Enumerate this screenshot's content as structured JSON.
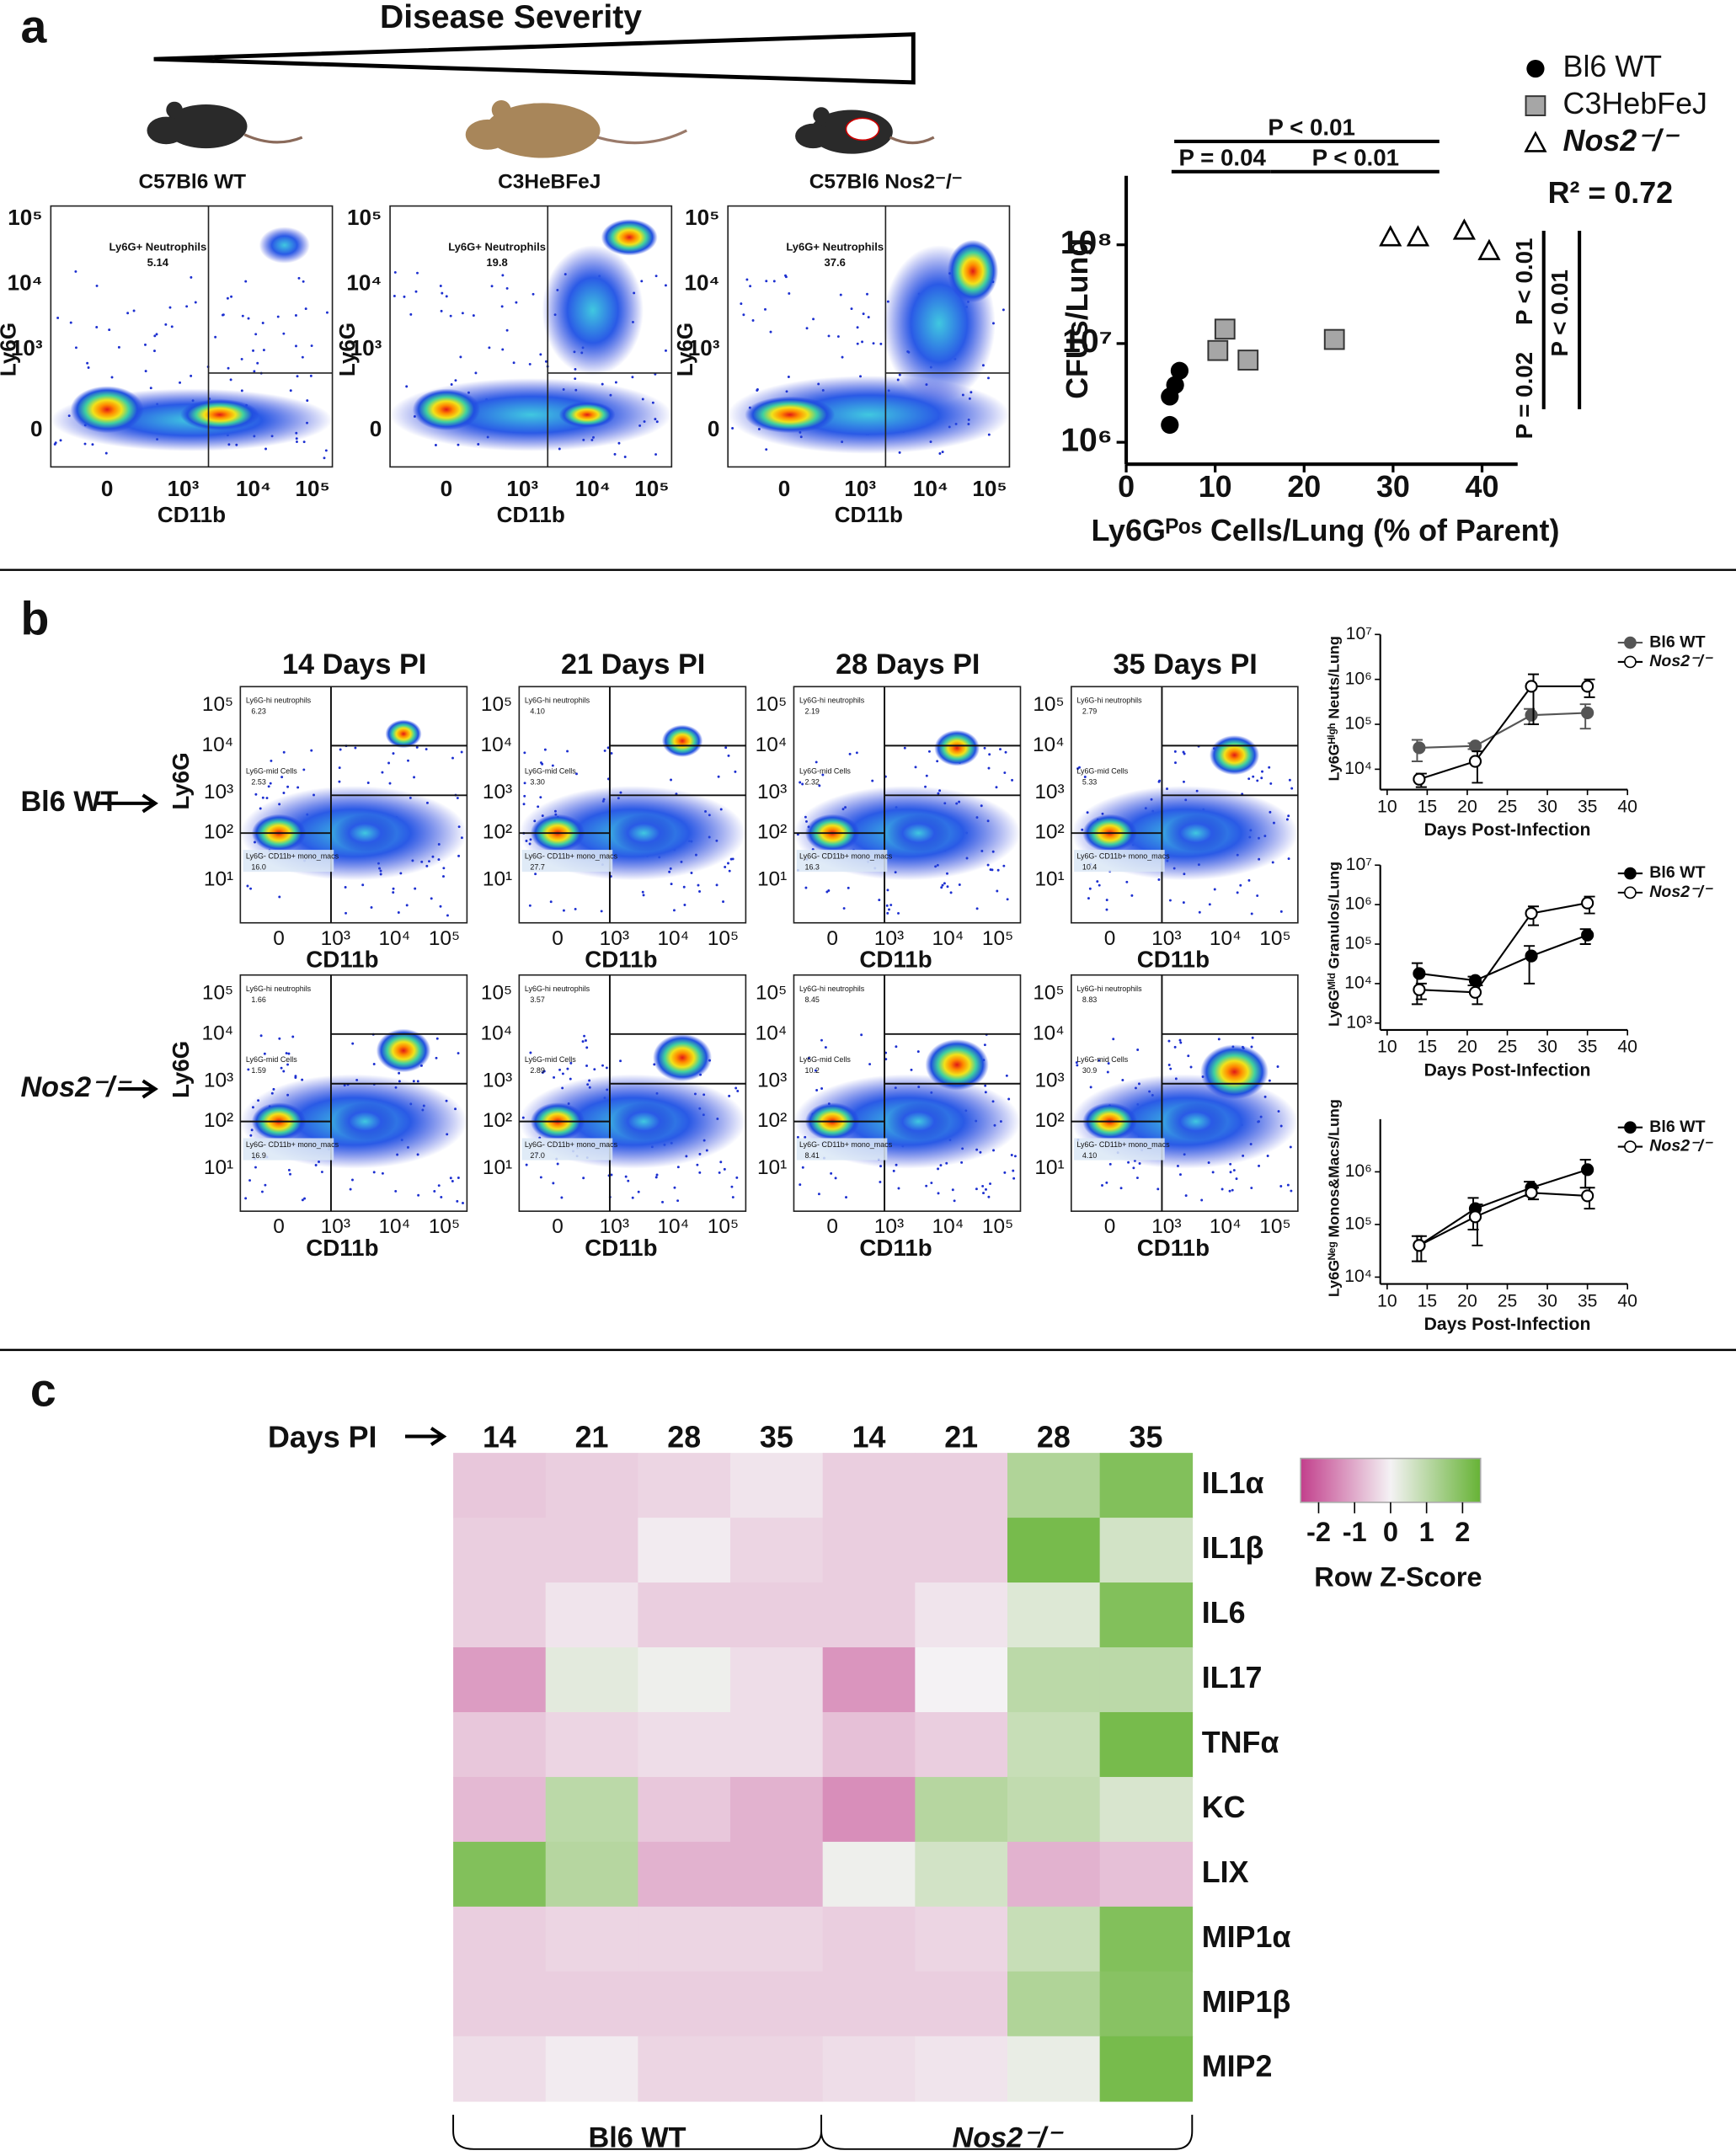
{
  "panel_a": {
    "label": "a",
    "severity_title": "Disease Severity",
    "strains": [
      "C57Bl6 WT",
      "C3HeBFeJ",
      "C57Bl6 Nos2⁻/⁻"
    ],
    "flow_plots": [
      {
        "gate": "Ly6G+ Neutrophils",
        "percent": "5.14"
      },
      {
        "gate": "Ly6G+ Neutrophils",
        "percent": "19.8"
      },
      {
        "gate": "Ly6G+ Neutrophils",
        "percent": "37.6"
      }
    ],
    "flow_x_label": "CD11b",
    "flow_y_label": "Ly6G",
    "flow_xticks": [
      "0",
      "10³",
      "10⁴",
      "10⁵"
    ],
    "flow_yticks": [
      "10⁵",
      "10⁴",
      "10³",
      "0"
    ]
  },
  "panel_b": {
    "label": "b",
    "day_titles": [
      "14 Days PI",
      "21 Days PI",
      "28 Days PI",
      "35 Days PI"
    ],
    "row_labels": [
      "Bl6 WT",
      "Nos2⁻/⁻"
    ],
    "gate_names": [
      "Ly6G-hi neutrophils",
      "Ly6G-mid Cells",
      "Ly6G- CD11b+ mono_macs"
    ],
    "percents": [
      [
        [
          "6.23",
          "2.53",
          "16.0"
        ],
        [
          "4.10",
          "3.30",
          "27.7"
        ],
        [
          "2.19",
          "2.32",
          "16.3"
        ],
        [
          "2.79",
          "5.33",
          "10.4"
        ]
      ],
      [
        [
          "1.66",
          "1.59",
          "16.9"
        ],
        [
          "3.57",
          "2.89",
          "27.0"
        ],
        [
          "8.45",
          "10.2",
          "8.41"
        ],
        [
          "8.83",
          "30.9",
          "4.10"
        ]
      ]
    ],
    "x_label": "CD11b",
    "y_label": "Ly6G",
    "xticks": [
      "0",
      "10³",
      "10⁴",
      "10⁵"
    ],
    "yticks": [
      "10⁵",
      "10⁴",
      "10³",
      "10²",
      "10¹"
    ]
  },
  "panel_c": {
    "label": "c"
  },
  "chart_data": [
    {
      "type": "scatter",
      "log_y": true,
      "x_label": "Ly6Gᴾᵒˢ Cells/Lung (% of Parent)",
      "y_label": "CFUs/Lung",
      "xlim": [
        0,
        44
      ],
      "ylim": [
        600000,
        500000000
      ],
      "xticks": [
        0,
        10,
        20,
        30,
        40
      ],
      "yticks": [
        {
          "value": 1000000,
          "label": "10⁶"
        },
        {
          "value": 10000000,
          "label": "10⁷"
        },
        {
          "value": 100000000,
          "label": "10⁸"
        }
      ],
      "series": [
        {
          "name": "Bl6 WT",
          "marker": "circle",
          "color": "#000000",
          "x": [
            4.9,
            4.9,
            5.5,
            6.0
          ],
          "y": [
            1500000,
            2900000,
            3800000,
            5300000
          ]
        },
        {
          "name": "C3HebFeJ",
          "marker": "square",
          "color": "#a6a6a6",
          "x": [
            10.3,
            11.1,
            13.7,
            23.4
          ],
          "y": [
            8500000,
            14000000,
            6800000,
            11000000
          ]
        },
        {
          "name": "Nos2⁻/⁻",
          "marker": "triangle",
          "color": "#000000",
          "x": [
            29.7,
            32.8,
            38.0,
            40.8
          ],
          "y": [
            120000000,
            120000000,
            140000000,
            87000000
          ]
        }
      ],
      "r_squared": "R² = 0.72",
      "annotations": [
        "P < 0.01",
        "P = 0.04",
        "P < 0.01",
        "P < 0.01",
        "P = 0.02",
        "P < 0.01"
      ]
    },
    {
      "type": "line",
      "log_y": true,
      "y_label": "Ly6Gᴴⁱᵍʰ Neuts/Lung",
      "x_label": "Days Post-Infection",
      "x": [
        14,
        21,
        28,
        35
      ],
      "xlim": [
        10,
        40
      ],
      "xticks": [
        10,
        15,
        20,
        25,
        30,
        35,
        40
      ],
      "ylim": [
        5000,
        10000000
      ],
      "yticks": [
        {
          "value": 10000,
          "label": "10⁴"
        },
        {
          "value": 100000,
          "label": "10⁵"
        },
        {
          "value": 1000000,
          "label": "10⁶"
        },
        {
          "value": 10000000,
          "label": "10⁷"
        }
      ],
      "series": [
        {
          "name": "Bl6 WT",
          "marker": "filled",
          "color": "#555555",
          "values": [
            30000,
            33000,
            160000,
            180000
          ],
          "errors": [
            15000,
            5000,
            60000,
            100000
          ]
        },
        {
          "name": "Nos2⁻/⁻",
          "marker": "open",
          "color": "#000000",
          "values": [
            6000,
            15000,
            700000,
            700000
          ],
          "errors": [
            2000,
            10000,
            600000,
            300000
          ]
        }
      ]
    },
    {
      "type": "line",
      "log_y": true,
      "y_label": "Ly6Gᴹⁱᵈ Granulos/Lung",
      "x_label": "Days Post-Infection",
      "x": [
        14,
        21,
        28,
        35
      ],
      "xlim": [
        10,
        40
      ],
      "xticks": [
        10,
        15,
        20,
        25,
        30,
        35,
        40
      ],
      "ylim": [
        1000,
        10000000
      ],
      "yticks": [
        {
          "value": 1000,
          "label": "10³"
        },
        {
          "value": 10000,
          "label": "10⁴"
        },
        {
          "value": 100000,
          "label": "10⁵"
        },
        {
          "value": 1000000,
          "label": "10⁶"
        },
        {
          "value": 10000000,
          "label": "10⁷"
        }
      ],
      "series": [
        {
          "name": "Bl6 WT",
          "marker": "filled",
          "color": "#000000",
          "values": [
            18000,
            12000,
            50000,
            170000
          ],
          "errors": [
            15000,
            3000,
            40000,
            70000
          ]
        },
        {
          "name": "Nos2⁻/⁻",
          "marker": "open",
          "color": "#000000",
          "values": [
            7000,
            6000,
            600000,
            1100000
          ],
          "errors": [
            3000,
            3000,
            300000,
            500000
          ]
        }
      ]
    },
    {
      "type": "line",
      "log_y": true,
      "y_label": "Ly6Gᴺᵉᵍ Monos&Macs/Lung",
      "x_label": "Days Post-Infection",
      "x": [
        14,
        21,
        28,
        35
      ],
      "xlim": [
        10,
        40
      ],
      "xticks": [
        10,
        15,
        20,
        25,
        30,
        35,
        40
      ],
      "ylim": [
        10000,
        10000000
      ],
      "yticks": [
        {
          "value": 10000,
          "label": "10⁴"
        },
        {
          "value": 100000,
          "label": "10⁵"
        },
        {
          "value": 1000000,
          "label": "10⁶"
        }
      ],
      "series": [
        {
          "name": "Bl6 WT",
          "marker": "filled",
          "color": "#000000",
          "values": [
            40000,
            200000,
            500000,
            1100000
          ],
          "errors": [
            20000,
            120000,
            150000,
            600000
          ]
        },
        {
          "name": "Nos2⁻/⁻",
          "marker": "open",
          "color": "#000000",
          "values": [
            40000,
            140000,
            400000,
            350000
          ],
          "errors": [
            20000,
            100000,
            100000,
            150000
          ]
        }
      ]
    },
    {
      "type": "heatmap",
      "days_label": "Days PI",
      "columns": [
        "14",
        "21",
        "28",
        "35",
        "14",
        "21",
        "28",
        "35"
      ],
      "rows": [
        "IL1α",
        "IL1β",
        "IL6",
        "IL17",
        "TNFα",
        "KC",
        "LIX",
        "MIP1α",
        "MIP1β",
        "MIP2"
      ],
      "values": [
        [
          -0.6,
          -0.5,
          -0.4,
          -0.2,
          -0.5,
          -0.5,
          1.2,
          2.0
        ],
        [
          -0.5,
          -0.5,
          -0.1,
          -0.4,
          -0.5,
          -0.5,
          2.2,
          0.6
        ],
        [
          -0.5,
          -0.2,
          -0.5,
          -0.5,
          -0.5,
          -0.2,
          0.4,
          2.0
        ],
        [
          -1.2,
          0.3,
          0.1,
          -0.3,
          -1.3,
          0.0,
          1.0,
          1.0
        ],
        [
          -0.6,
          -0.4,
          -0.3,
          -0.3,
          -0.7,
          -0.5,
          0.8,
          2.2
        ],
        [
          -0.8,
          1.0,
          -0.6,
          -0.9,
          -1.4,
          1.1,
          0.9,
          0.5
        ],
        [
          2.0,
          1.1,
          -0.9,
          -0.9,
          0.1,
          0.6,
          -0.9,
          -0.7
        ],
        [
          -0.5,
          -0.4,
          -0.4,
          -0.4,
          -0.5,
          -0.4,
          0.8,
          2.0
        ],
        [
          -0.5,
          -0.5,
          -0.5,
          -0.5,
          -0.5,
          -0.5,
          1.2,
          1.9
        ],
        [
          -0.3,
          -0.1,
          -0.4,
          -0.4,
          -0.3,
          -0.2,
          0.2,
          2.2
        ]
      ],
      "zlim": [
        -2.5,
        2.5
      ],
      "colors": [
        "#c23f8c",
        "#f4f2f4",
        "#66b335"
      ],
      "colorbar_ticks": [
        -2,
        -1,
        0,
        1,
        2
      ],
      "colorbar_label": "Row Z-Score",
      "groups": [
        "Bl6 WT",
        "Nos2⁻/⁻"
      ]
    }
  ]
}
